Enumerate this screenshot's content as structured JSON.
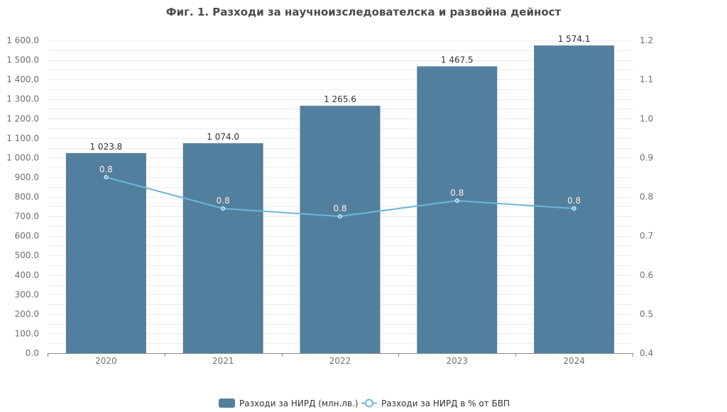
{
  "chart_data": {
    "type": "bar",
    "title": "Фиг. 1. Разходи за научноизследователска и развойна дейност",
    "categories": [
      "2020",
      "2021",
      "2022",
      "2023",
      "2024"
    ],
    "series": [
      {
        "name": "Разходи за НИРД (млн.лв.)",
        "type": "bar",
        "axis": "left",
        "color": "#537f9e",
        "values": [
          1023.8,
          1074.0,
          1265.6,
          1467.5,
          1574.1
        ],
        "labels": [
          "1 023.8",
          "1 074.0",
          "1 265.6",
          "1 467.5",
          "1 574.1"
        ]
      },
      {
        "name": "Разходи за НИРД в % от БВП",
        "type": "line",
        "axis": "right",
        "color": "#6bb8dc",
        "values": [
          0.85,
          0.77,
          0.75,
          0.79,
          0.77
        ],
        "labels": [
          "0.8",
          "0.8",
          "0.8",
          "0.8",
          "0.8"
        ]
      }
    ],
    "y_left": {
      "range": [
        0,
        1600
      ],
      "ticks": [
        0,
        100,
        200,
        300,
        400,
        500,
        600,
        700,
        800,
        900,
        1000,
        1100,
        1200,
        1300,
        1400,
        1500,
        1600
      ],
      "tick_labels": [
        "0.0",
        "100.0",
        "200.0",
        "300.0",
        "400.0",
        "500.0",
        "600.0",
        "700.0",
        "800.0",
        "900.0",
        "1 000.0",
        "1 100.0",
        "1 200.0",
        "1 300.0",
        "1 400.0",
        "1 500.0",
        "1 600.0"
      ]
    },
    "y_right": {
      "range": [
        0.4,
        1.2
      ],
      "ticks": [
        0.4,
        0.5,
        0.6,
        0.7,
        0.8,
        0.9,
        1.0,
        1.1,
        1.2
      ],
      "tick_labels": [
        "0.4",
        "0.5",
        "0.6",
        "0.7",
        "0.8",
        "0.9",
        "1.0",
        "1.1",
        "1.2"
      ]
    },
    "xlabel": "",
    "ylabel": "",
    "grid": true,
    "legend_position": "bottom"
  },
  "legend": {
    "items": [
      {
        "label": "Разходи за НИРД (млн.лв.)",
        "kind": "bar-swatch",
        "color": "#537f9e"
      },
      {
        "label": "Разходи за НИРД в % от БВП",
        "kind": "line-circle-marker",
        "color": "#6bb8dc"
      }
    ]
  }
}
